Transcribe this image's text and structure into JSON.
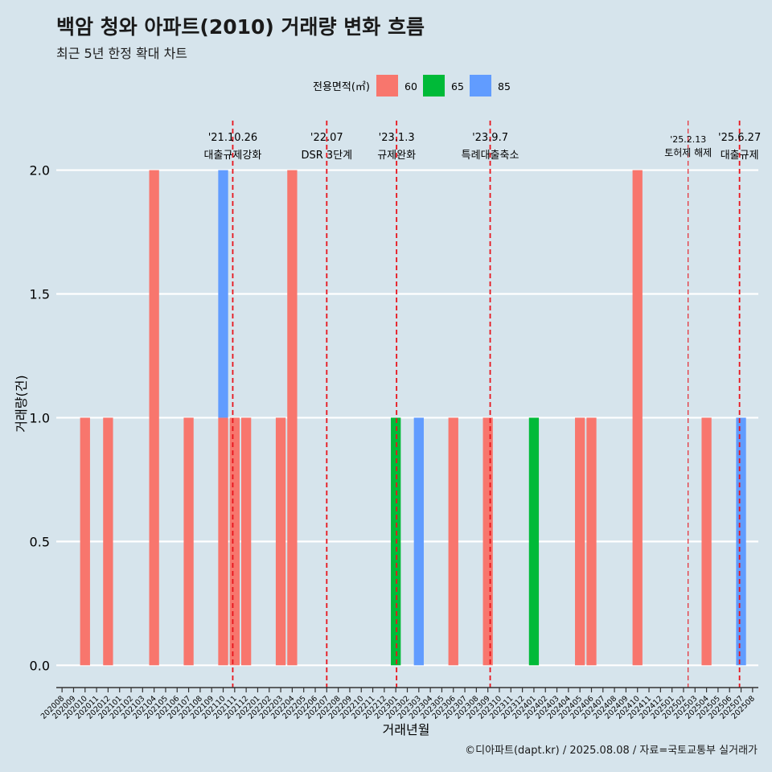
{
  "chart_data": {
    "type": "bar",
    "title": "백암 청와 아파트(2010) 거래량 변화 흐름",
    "subtitle": "최근 5년 한정 확대 차트",
    "xlabel": "거래년월",
    "ylabel": "거래량(건)",
    "caption": "©디아파트(dapt.kr) / 2025.08.08 / 자료=국토교통부 실거래가",
    "legend": {
      "title": "전용면적(㎡)",
      "position": "top"
    },
    "ylim": [
      -0.09,
      2.2
    ],
    "yticks": [
      0.0,
      0.5,
      1.0,
      1.5,
      2.0
    ],
    "ytick_labels": [
      "0.0",
      "0.5",
      "1.0",
      "1.5",
      "2.0"
    ],
    "categories": [
      "202008",
      "202009",
      "202010",
      "202011",
      "202012",
      "202101",
      "202102",
      "202103",
      "202104",
      "202105",
      "202106",
      "202107",
      "202108",
      "202109",
      "202110",
      "202111",
      "202112",
      "202201",
      "202202",
      "202203",
      "202204",
      "202205",
      "202206",
      "202207",
      "202208",
      "202209",
      "202210",
      "202211",
      "202212",
      "202301",
      "202302",
      "202303",
      "202304",
      "202305",
      "202306",
      "202307",
      "202308",
      "202309",
      "202310",
      "202311",
      "202312",
      "202401",
      "202402",
      "202403",
      "202404",
      "202405",
      "202406",
      "202407",
      "202408",
      "202409",
      "202410",
      "202411",
      "202412",
      "202501",
      "202502",
      "202503",
      "202504",
      "202505",
      "202506",
      "202507",
      "202508"
    ],
    "series": [
      {
        "name": "60",
        "color": "#f8766d",
        "values": [
          0,
          0,
          1,
          0,
          1,
          0,
          0,
          0,
          2,
          0,
          0,
          1,
          0,
          0,
          1,
          1,
          1,
          0,
          0,
          1,
          2,
          0,
          0,
          0,
          0,
          0,
          0,
          0,
          0,
          0,
          0,
          0,
          0,
          0,
          1,
          0,
          0,
          1,
          0,
          0,
          0,
          0,
          0,
          0,
          0,
          1,
          1,
          0,
          0,
          0,
          2,
          0,
          0,
          0,
          0,
          0,
          1,
          0,
          0,
          0,
          0
        ]
      },
      {
        "name": "65",
        "color": "#00ba38",
        "values": [
          0,
          0,
          0,
          0,
          0,
          0,
          0,
          0,
          0,
          0,
          0,
          0,
          0,
          0,
          0,
          0,
          0,
          0,
          0,
          0,
          0,
          0,
          0,
          0,
          0,
          0,
          0,
          0,
          0,
          1,
          0,
          0,
          0,
          0,
          0,
          0,
          0,
          0,
          0,
          0,
          0,
          1,
          0,
          0,
          0,
          0,
          0,
          0,
          0,
          0,
          0,
          0,
          0,
          0,
          0,
          0,
          0,
          0,
          0,
          0,
          0
        ]
      },
      {
        "name": "85",
        "color": "#619cff",
        "values": [
          0,
          0,
          0,
          0,
          0,
          0,
          0,
          0,
          0,
          0,
          0,
          0,
          0,
          0,
          1,
          0,
          0,
          0,
          0,
          0,
          0,
          0,
          0,
          0,
          0,
          0,
          0,
          0,
          0,
          0,
          0,
          1,
          0,
          0,
          0,
          0,
          0,
          0,
          0,
          0,
          0,
          0,
          0,
          0,
          0,
          0,
          0,
          0,
          0,
          0,
          0,
          0,
          0,
          0,
          0,
          0,
          0,
          0,
          0,
          1,
          0
        ]
      }
    ],
    "events": [
      {
        "x": "2021-10-26",
        "date": "'21.10.26",
        "label": "대출규제강화"
      },
      {
        "x": "2022-07-01",
        "date": "'22.07",
        "label": "DSR 3단계"
      },
      {
        "x": "2023-01-03",
        "date": "'23.1.3",
        "label": "규제완화"
      },
      {
        "x": "2023-09-07",
        "date": "'23.9.7",
        "label": "특례대출축소"
      },
      {
        "x": "2025-02-13",
        "date": "'25.2.13",
        "label": "토허제 해제",
        "style": "thin"
      },
      {
        "x": "2025-06-27",
        "date": "'25.6.27",
        "label": "대출규제"
      }
    ],
    "grid": true
  }
}
